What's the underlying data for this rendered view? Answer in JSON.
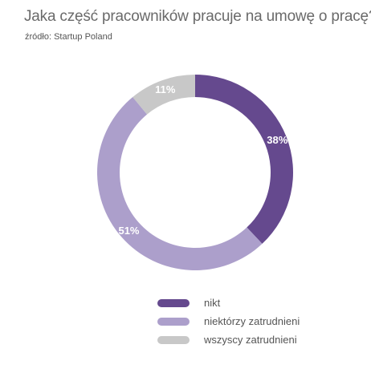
{
  "header": {
    "title": "Jaka część pracowników pracuje na umowę o pracę?",
    "source": "źródło: Startup Poland"
  },
  "chart_data": {
    "type": "pie",
    "variant": "donut",
    "title": "Jaka część pracowników pracuje na umowę o pracę?",
    "subtitle": "źródło: Startup Poland",
    "categories": [
      "nikt",
      "niektórzy zatrudnieni",
      "wszyscy zatrudnieni"
    ],
    "values": [
      38,
      51,
      11
    ],
    "labels": [
      "38%",
      "51%",
      "11%"
    ],
    "colors": [
      "#65498e",
      "#ac9fcb",
      "#c8c8c8"
    ],
    "start_angle": "top",
    "direction": "clockwise",
    "legend_position": "bottom"
  }
}
